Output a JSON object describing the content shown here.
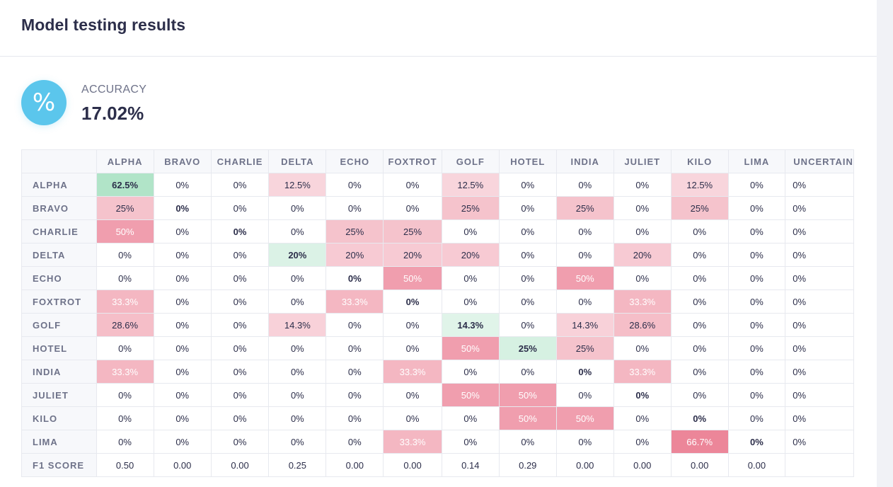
{
  "header": {
    "title": "Model testing results"
  },
  "accuracy": {
    "icon": "percent-icon",
    "icon_glyph": "%",
    "label": "ACCURACY",
    "value": "17.02%"
  },
  "matrix": {
    "columns": [
      "ALPHA",
      "BRAVO",
      "CHARLIE",
      "DELTA",
      "ECHO",
      "FOXTROT",
      "GOLF",
      "HOTEL",
      "INDIA",
      "JULIET",
      "KILO",
      "LIMA",
      "UNCERTAIN"
    ],
    "rows": [
      {
        "label": "ALPHA",
        "values": [
          "62.5%",
          "0%",
          "0%",
          "12.5%",
          "0%",
          "0%",
          "12.5%",
          "0%",
          "0%",
          "0%",
          "12.5%",
          "0%",
          "0%"
        ]
      },
      {
        "label": "BRAVO",
        "values": [
          "25%",
          "0%",
          "0%",
          "0%",
          "0%",
          "0%",
          "25%",
          "0%",
          "25%",
          "0%",
          "25%",
          "0%",
          "0%"
        ]
      },
      {
        "label": "CHARLIE",
        "values": [
          "50%",
          "0%",
          "0%",
          "0%",
          "25%",
          "25%",
          "0%",
          "0%",
          "0%",
          "0%",
          "0%",
          "0%",
          "0%"
        ]
      },
      {
        "label": "DELTA",
        "values": [
          "0%",
          "0%",
          "0%",
          "20%",
          "20%",
          "20%",
          "20%",
          "0%",
          "0%",
          "20%",
          "0%",
          "0%",
          "0%"
        ]
      },
      {
        "label": "ECHO",
        "values": [
          "0%",
          "0%",
          "0%",
          "0%",
          "0%",
          "50%",
          "0%",
          "0%",
          "50%",
          "0%",
          "0%",
          "0%",
          "0%"
        ]
      },
      {
        "label": "FOXTROT",
        "values": [
          "33.3%",
          "0%",
          "0%",
          "0%",
          "33.3%",
          "0%",
          "0%",
          "0%",
          "0%",
          "33.3%",
          "0%",
          "0%",
          "0%"
        ]
      },
      {
        "label": "GOLF",
        "values": [
          "28.6%",
          "0%",
          "0%",
          "14.3%",
          "0%",
          "0%",
          "14.3%",
          "0%",
          "14.3%",
          "28.6%",
          "0%",
          "0%",
          "0%"
        ]
      },
      {
        "label": "HOTEL",
        "values": [
          "0%",
          "0%",
          "0%",
          "0%",
          "0%",
          "0%",
          "50%",
          "25%",
          "25%",
          "0%",
          "0%",
          "0%",
          "0%"
        ]
      },
      {
        "label": "INDIA",
        "values": [
          "33.3%",
          "0%",
          "0%",
          "0%",
          "0%",
          "33.3%",
          "0%",
          "0%",
          "0%",
          "33.3%",
          "0%",
          "0%",
          "0%"
        ]
      },
      {
        "label": "JULIET",
        "values": [
          "0%",
          "0%",
          "0%",
          "0%",
          "0%",
          "0%",
          "50%",
          "50%",
          "0%",
          "0%",
          "0%",
          "0%",
          "0%"
        ]
      },
      {
        "label": "KILO",
        "values": [
          "0%",
          "0%",
          "0%",
          "0%",
          "0%",
          "0%",
          "0%",
          "50%",
          "50%",
          "0%",
          "0%",
          "0%",
          "0%"
        ]
      },
      {
        "label": "LIMA",
        "values": [
          "0%",
          "0%",
          "0%",
          "0%",
          "0%",
          "33.3%",
          "0%",
          "0%",
          "0%",
          "0%",
          "66.7%",
          "0%",
          "0%"
        ]
      }
    ],
    "f1": {
      "label": "F1 SCORE",
      "values": [
        "0.50",
        "0.00",
        "0.00",
        "0.25",
        "0.00",
        "0.00",
        "0.14",
        "0.29",
        "0.00",
        "0.00",
        "0.00",
        "0.00",
        ""
      ]
    }
  },
  "colors": {
    "accent": "#5bc6ec",
    "correct": [
      152,
      219,
      183
    ],
    "error": [
      231,
      104,
      128
    ]
  }
}
